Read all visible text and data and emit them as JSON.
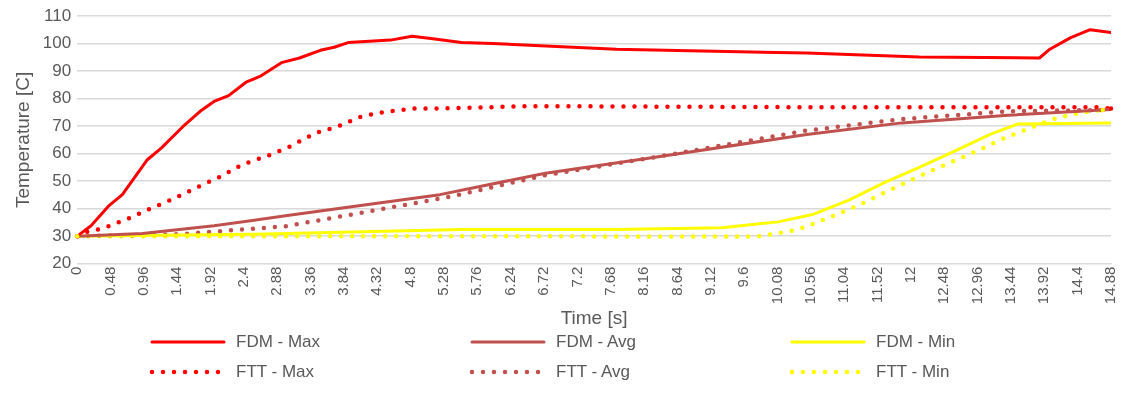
{
  "chart_data": {
    "type": "line",
    "xlabel": "Time [s]",
    "ylabel": "Temperature [C]",
    "xlim": [
      0,
      14.88
    ],
    "ylim": [
      20,
      110
    ],
    "xticks": [
      0,
      0.48,
      0.96,
      1.44,
      1.92,
      2.4,
      2.88,
      3.36,
      3.84,
      4.32,
      4.8,
      5.28,
      5.76,
      6.24,
      6.72,
      7.2,
      7.68,
      8.16,
      8.64,
      9.12,
      9.6,
      10.08,
      10.56,
      11.04,
      11.52,
      12,
      12.48,
      12.96,
      13.44,
      13.92,
      14.4,
      14.88
    ],
    "yticks": [
      20,
      30,
      40,
      50,
      60,
      70,
      80,
      90,
      100,
      110
    ],
    "grid": "y",
    "legend": "bottom",
    "marker": "none",
    "series": [
      {
        "name": "FDM  - Max",
        "color": "#ff0000",
        "line_style": "solid",
        "x": [
          0,
          0.2,
          0.45,
          0.65,
          1.01,
          1.21,
          1.52,
          1.77,
          1.97,
          2.18,
          2.43,
          2.63,
          2.94,
          3.2,
          3.5,
          3.7,
          3.9,
          4.51,
          4.82,
          5.12,
          5.53,
          5.98,
          7.76,
          10.5,
          12.12,
          13.85,
          14.0,
          14.3,
          14.58,
          14.88
        ],
        "values": [
          30,
          33.8,
          40.9,
          45.1,
          57.8,
          62,
          69.8,
          75.4,
          79,
          81.1,
          86,
          88.1,
          93.1,
          94.8,
          97.6,
          98.7,
          100.4,
          101.3,
          102.7,
          101.8,
          100.4,
          100.1,
          98,
          96.6,
          95.2,
          94.8,
          98,
          102.2,
          105.1,
          104.1
        ]
      },
      {
        "name": "FDM - Avg",
        "color": "#c0504d",
        "line_style": "solid",
        "x": [
          0,
          0.94,
          1.97,
          3.0,
          4.0,
          5.22,
          6.74,
          8.27,
          10.5,
          11.87,
          13.4,
          14.88
        ],
        "values": [
          30,
          31,
          33.8,
          37.4,
          40.9,
          45.1,
          52.9,
          58.5,
          67,
          71.2,
          74,
          76.1
        ]
      },
      {
        "name": "FDM - Min",
        "color": "#ffff00",
        "line_style": "solid",
        "x": [
          0,
          2.48,
          5.53,
          7.76,
          9.28,
          10.09,
          10.6,
          11.1,
          11.61,
          12.12,
          12.63,
          13.14,
          13.54,
          14.88
        ],
        "values": [
          30,
          30.7,
          32.4,
          32.4,
          33.1,
          35.2,
          38,
          43,
          49.4,
          55,
          60.9,
          67,
          70.8,
          71.2
        ]
      },
      {
        "name": "FTT - Max",
        "color": "#ff0000",
        "line_style": "dotted",
        "x": [
          0,
          0.15,
          0.35,
          0.7,
          1.04,
          1.37,
          1.72,
          2.05,
          2.38,
          2.74,
          3.07,
          3.42,
          3.75,
          4.1,
          4.46,
          4.84,
          5.22,
          6.51,
          10.39,
          12.63,
          14.66,
          14.88
        ],
        "values": [
          30,
          31.7,
          32.7,
          36,
          39.9,
          43.4,
          47.7,
          51.5,
          56.1,
          59.2,
          62.7,
          67.4,
          69.9,
          73.6,
          75.3,
          76.4,
          76.4,
          77.3,
          76.9,
          76.9,
          76.9,
          76.4
        ]
      },
      {
        "name": "FTT - Avg",
        "color": "#c0504d",
        "line_style": "dotted",
        "x": [
          0,
          1.47,
          3.0,
          4.0,
          5.38,
          6.74,
          8.27,
          10.5,
          11.87,
          13.4,
          14.76
        ],
        "values": [
          30,
          30.7,
          33.6,
          38.1,
          44.4,
          52.2,
          58.5,
          68.4,
          72.6,
          75.4,
          75.9
        ]
      },
      {
        "name": "FTT - Min",
        "color": "#ffff00",
        "line_style": "dotted",
        "x": [
          0,
          9.79,
          10.24,
          10.4,
          10.75,
          11.28,
          11.79,
          12.3,
          12.83,
          13.34,
          13.69,
          14.05,
          14.4,
          14.76
        ],
        "values": [
          30,
          29.9,
          31.7,
          32.7,
          36,
          41.6,
          47.9,
          53.9,
          59.6,
          65.6,
          69.1,
          72.6,
          74.7,
          75.9
        ]
      }
    ]
  }
}
